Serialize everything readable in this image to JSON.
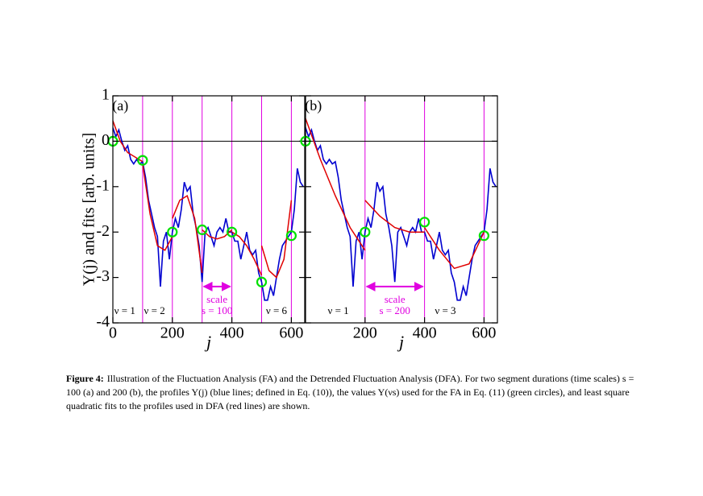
{
  "chart_data": [
    {
      "type": "line",
      "panel_label": "(a)",
      "xlabel": "j",
      "ylabel": "Y(j) and fits [arb. units]",
      "xlim": [
        0,
        645
      ],
      "ylim": [
        -4,
        1
      ],
      "xticks": [
        0,
        200,
        400,
        600
      ],
      "yticks": [
        -4,
        -3,
        -2,
        -1,
        0,
        1
      ],
      "ytick_labels": true,
      "hline": 0,
      "vlines": [
        100,
        200,
        300,
        400,
        500,
        600
      ],
      "vline_color": "#e000e0",
      "series": [
        {
          "type": "line",
          "color": "#0000d0",
          "x": [
            0,
            10,
            20,
            30,
            40,
            50,
            60,
            70,
            80,
            90,
            100,
            110,
            120,
            130,
            140,
            150,
            160,
            170,
            180,
            190,
            200,
            210,
            220,
            230,
            240,
            250,
            260,
            270,
            280,
            290,
            300,
            310,
            320,
            330,
            340,
            350,
            360,
            370,
            380,
            390,
            400,
            410,
            420,
            430,
            440,
            450,
            460,
            470,
            480,
            490,
            500,
            510,
            520,
            530,
            540,
            550,
            560,
            570,
            580,
            590,
            600,
            610,
            620,
            630,
            640
          ],
          "values": [
            0.3,
            0.1,
            0.25,
            0.0,
            -0.2,
            -0.1,
            -0.4,
            -0.5,
            -0.4,
            -0.5,
            -0.45,
            -0.8,
            -1.3,
            -1.6,
            -1.9,
            -2.1,
            -3.2,
            -2.2,
            -2.0,
            -2.6,
            -2.0,
            -1.7,
            -1.9,
            -1.5,
            -0.9,
            -1.1,
            -1.0,
            -1.6,
            -1.9,
            -2.3,
            -3.1,
            -2.0,
            -1.9,
            -2.1,
            -2.3,
            -2.0,
            -1.9,
            -2.0,
            -1.7,
            -2.0,
            -2.0,
            -2.2,
            -2.2,
            -2.6,
            -2.3,
            -2.0,
            -2.4,
            -2.5,
            -2.4,
            -2.9,
            -3.1,
            -3.5,
            -3.5,
            -3.2,
            -3.4,
            -3.0,
            -2.6,
            -2.3,
            -2.2,
            -2.1,
            -2.0,
            -1.5,
            -0.6,
            -0.9,
            -1.0
          ]
        },
        {
          "type": "line",
          "color": "#e00000",
          "x": [
            0,
            25,
            50,
            75,
            100
          ],
          "values": [
            0.45,
            0.0,
            -0.25,
            -0.35,
            -0.45
          ]
        },
        {
          "type": "line",
          "color": "#e00000",
          "x": [
            100,
            125,
            150,
            175,
            200
          ],
          "values": [
            -0.5,
            -1.6,
            -2.3,
            -2.4,
            -2.1
          ]
        },
        {
          "type": "line",
          "color": "#e00000",
          "x": [
            200,
            225,
            250,
            275,
            300
          ],
          "values": [
            -1.7,
            -1.3,
            -1.2,
            -1.7,
            -2.9
          ]
        },
        {
          "type": "line",
          "color": "#e00000",
          "x": [
            300,
            325,
            350,
            375,
            400
          ],
          "values": [
            -1.95,
            -2.1,
            -2.15,
            -2.1,
            -1.95
          ]
        },
        {
          "type": "line",
          "color": "#e00000",
          "x": [
            400,
            425,
            450,
            475,
            500
          ],
          "values": [
            -2.0,
            -2.1,
            -2.3,
            -2.6,
            -2.95
          ]
        },
        {
          "type": "line",
          "color": "#e00000",
          "x": [
            500,
            525,
            550,
            575,
            600
          ],
          "values": [
            -2.3,
            -2.85,
            -3.0,
            -2.6,
            -1.3
          ]
        },
        {
          "type": "scatter",
          "color": "#00e000",
          "x": [
            0,
            100,
            200,
            300,
            400,
            500,
            600
          ],
          "values": [
            0,
            -0.42,
            -2.0,
            -1.95,
            -2.0,
            -3.1,
            -2.08
          ]
        }
      ],
      "arrow": {
        "x": [
          300,
          400
        ],
        "y": -3.2
      },
      "annotations": [
        {
          "text": "(a)",
          "x": 25,
          "y": 0.75,
          "color": "#000000"
        },
        {
          "text": "ν = 1",
          "x": 40,
          "y": -3.75,
          "color": "#000000"
        },
        {
          "text": "ν = 2",
          "x": 140,
          "y": -3.75,
          "color": "#000000"
        },
        {
          "text": "ν = 6",
          "x": 550,
          "y": -3.75,
          "color": "#000000"
        },
        {
          "text": "scale",
          "x": 350,
          "y": -3.5,
          "color": "#e000e0"
        },
        {
          "text": "s = 100",
          "x": 350,
          "y": -3.75,
          "color": "#e000e0"
        }
      ]
    },
    {
      "type": "line",
      "panel_label": "(b)",
      "xlabel": "j",
      "xlim": [
        0,
        645
      ],
      "ylim": [
        -4,
        1
      ],
      "xticks": [
        200,
        400,
        600
      ],
      "yticks": [
        -4,
        -3,
        -2,
        -1,
        0,
        1
      ],
      "ytick_labels": false,
      "hline": 0,
      "vlines": [
        200,
        400,
        600
      ],
      "vline_color": "#e000e0",
      "series": [
        {
          "type": "line",
          "color": "#0000d0",
          "x": [
            0,
            10,
            20,
            30,
            40,
            50,
            60,
            70,
            80,
            90,
            100,
            110,
            120,
            130,
            140,
            150,
            160,
            170,
            180,
            190,
            200,
            210,
            220,
            230,
            240,
            250,
            260,
            270,
            280,
            290,
            300,
            310,
            320,
            330,
            340,
            350,
            360,
            370,
            380,
            390,
            400,
            410,
            420,
            430,
            440,
            450,
            460,
            470,
            480,
            490,
            500,
            510,
            520,
            530,
            540,
            550,
            560,
            570,
            580,
            590,
            600,
            610,
            620,
            630,
            640
          ],
          "values": [
            0.3,
            0.1,
            0.25,
            0.0,
            -0.2,
            -0.1,
            -0.4,
            -0.5,
            -0.4,
            -0.5,
            -0.45,
            -0.8,
            -1.3,
            -1.6,
            -1.9,
            -2.1,
            -3.2,
            -2.2,
            -2.0,
            -2.6,
            -2.0,
            -1.7,
            -1.9,
            -1.5,
            -0.9,
            -1.1,
            -1.0,
            -1.6,
            -1.9,
            -2.3,
            -3.1,
            -2.0,
            -1.9,
            -2.1,
            -2.3,
            -2.0,
            -1.9,
            -2.0,
            -1.7,
            -2.0,
            -2.0,
            -2.2,
            -2.2,
            -2.6,
            -2.3,
            -2.0,
            -2.4,
            -2.5,
            -2.4,
            -2.9,
            -3.1,
            -3.5,
            -3.5,
            -3.2,
            -3.4,
            -3.0,
            -2.6,
            -2.3,
            -2.2,
            -2.1,
            -2.0,
            -1.5,
            -0.6,
            -0.9,
            -1.0
          ]
        },
        {
          "type": "line",
          "color": "#e00000",
          "x": [
            0,
            50,
            100,
            150,
            200
          ],
          "values": [
            0.5,
            -0.4,
            -1.2,
            -1.9,
            -2.4
          ]
        },
        {
          "type": "line",
          "color": "#e00000",
          "x": [
            200,
            250,
            300,
            350,
            400
          ],
          "values": [
            -1.3,
            -1.65,
            -1.9,
            -2.0,
            -2.0
          ]
        },
        {
          "type": "line",
          "color": "#e00000",
          "x": [
            400,
            450,
            500,
            550,
            600
          ],
          "values": [
            -1.9,
            -2.4,
            -2.8,
            -2.7,
            -2.0
          ]
        },
        {
          "type": "scatter",
          "color": "#00e000",
          "x": [
            0,
            200,
            400,
            600
          ],
          "values": [
            0,
            -2.0,
            -1.78,
            -2.08
          ]
        }
      ],
      "arrow": {
        "x": [
          200,
          400
        ],
        "y": -3.2
      },
      "annotations": [
        {
          "text": "(b)",
          "x": 25,
          "y": 0.75,
          "color": "#000000"
        },
        {
          "text": "ν = 1",
          "x": 110,
          "y": -3.75,
          "color": "#000000"
        },
        {
          "text": "scale",
          "x": 300,
          "y": -3.5,
          "color": "#e000e0"
        },
        {
          "text": "s = 200",
          "x": 300,
          "y": -3.75,
          "color": "#e000e0"
        },
        {
          "text": "ν = 3",
          "x": 470,
          "y": -3.75,
          "color": "#000000"
        }
      ]
    }
  ],
  "caption": {
    "label": "Figure 4:",
    "text": "Illustration of the Fluctuation Analysis (FA) and the Detrended Fluctuation Analysis (DFA). For two segment durations (time scales) s = 100 (a) and 200 (b), the profiles Y(j) (blue lines; defined in Eq. (10)), the values Y(νs) used for the FA in Eq. (11) (green circles), and least square quadratic fits to the profiles used in DFA (red lines) are shown."
  }
}
